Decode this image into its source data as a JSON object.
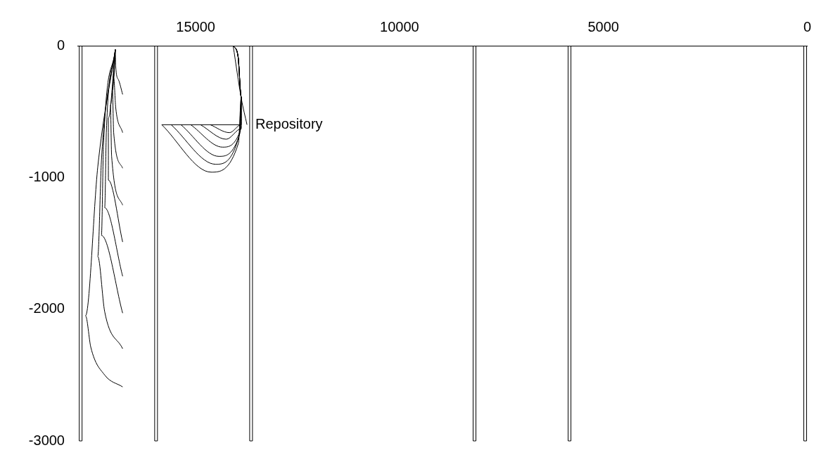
{
  "chart_data": {
    "type": "line",
    "xlim": [
      17900,
      0
    ],
    "ylim": [
      -3000,
      0
    ],
    "xticks": [
      15000,
      10000,
      5000,
      0
    ],
    "yticks": [
      0,
      -1000,
      -2000,
      -3000
    ],
    "grid": false,
    "legend": false,
    "marker": "none",
    "line_style": "solid",
    "ref_lines": [
      {
        "axis": "x",
        "value": 17820,
        "color": "#000000"
      },
      {
        "axis": "x",
        "value": 15970,
        "color": "#000000"
      },
      {
        "axis": "x",
        "value": 13640,
        "color": "#000000"
      },
      {
        "axis": "x",
        "value": 8160,
        "color": "#000000"
      },
      {
        "axis": "x",
        "value": 5830,
        "color": "#000000"
      },
      {
        "axis": "x",
        "value": 50,
        "color": "#000000"
      }
    ],
    "series": [
      {
        "color": "#000000",
        "x": [
          16970,
          16960,
          16890,
          16790
        ],
        "values": [
          -30,
          -160,
          -260,
          -370
        ]
      },
      {
        "color": "#000000",
        "x": [
          16970,
          17010,
          16960,
          16790
        ],
        "values": [
          -30,
          -240,
          -470,
          -660
        ]
      },
      {
        "color": "#000000",
        "x": [
          16970,
          17040,
          17010,
          16790
        ],
        "values": [
          -30,
          -340,
          -660,
          -930
        ]
      },
      {
        "color": "#000000",
        "x": [
          16970,
          17090,
          17060,
          16790
        ],
        "values": [
          -30,
          -450,
          -840,
          -1210
        ]
      },
      {
        "color": "#000000",
        "x": [
          16970,
          17140,
          17140,
          16790
        ],
        "values": [
          -30,
          -550,
          -1020,
          -1490
        ]
      },
      {
        "color": "#000000",
        "x": [
          16970,
          17190,
          17230,
          16790
        ],
        "values": [
          -30,
          -660,
          -1230,
          -1750
        ]
      },
      {
        "color": "#000000",
        "x": [
          16970,
          17260,
          17310,
          16790
        ],
        "values": [
          -30,
          -760,
          -1440,
          -2030
        ]
      },
      {
        "color": "#000000",
        "x": [
          16970,
          17310,
          17400,
          17230,
          16790
        ],
        "values": [
          -30,
          -870,
          -1600,
          -2020,
          -2300
        ]
      },
      {
        "color": "#000000",
        "x": [
          16970,
          17400,
          17700,
          17570,
          17230,
          16790
        ],
        "values": [
          -30,
          -920,
          -2050,
          -2290,
          -2500,
          -2590
        ]
      },
      {
        "name": "Repository",
        "color": "#000000",
        "x": [
          15830,
          13880
        ],
        "values": [
          -600,
          -600
        ]
      },
      {
        "color": "#000000",
        "x": [
          15830,
          14620,
          13950,
          13880,
          13960,
          14080
        ],
        "values": [
          -600,
          -960,
          -740,
          -390,
          -80,
          0
        ]
      },
      {
        "color": "#000000",
        "x": [
          15600,
          14510,
          13930,
          13880,
          13960,
          14080
        ],
        "values": [
          -600,
          -900,
          -680,
          -390,
          -80,
          0
        ]
      },
      {
        "color": "#000000",
        "x": [
          15360,
          14430,
          13910,
          13880,
          13960,
          14080
        ],
        "values": [
          -600,
          -840,
          -660,
          -390,
          -80,
          0
        ]
      },
      {
        "color": "#000000",
        "x": [
          15120,
          14340,
          13890,
          13880,
          13960,
          14080
        ],
        "values": [
          -600,
          -770,
          -630,
          -390,
          -80,
          0
        ]
      },
      {
        "color": "#000000",
        "x": [
          14880,
          14250,
          13880,
          13880,
          13960,
          14080
        ],
        "values": [
          -600,
          -710,
          -630,
          -390,
          -80,
          0
        ]
      },
      {
        "color": "#000000",
        "x": [
          14640,
          14170,
          13880,
          13880,
          13960,
          14080
        ],
        "values": [
          -600,
          -660,
          -600,
          -390,
          -80,
          0
        ]
      },
      {
        "color": "#000000",
        "x": [
          14080,
          13880,
          13740
        ],
        "values": [
          0,
          -400,
          -600
        ]
      }
    ]
  }
}
